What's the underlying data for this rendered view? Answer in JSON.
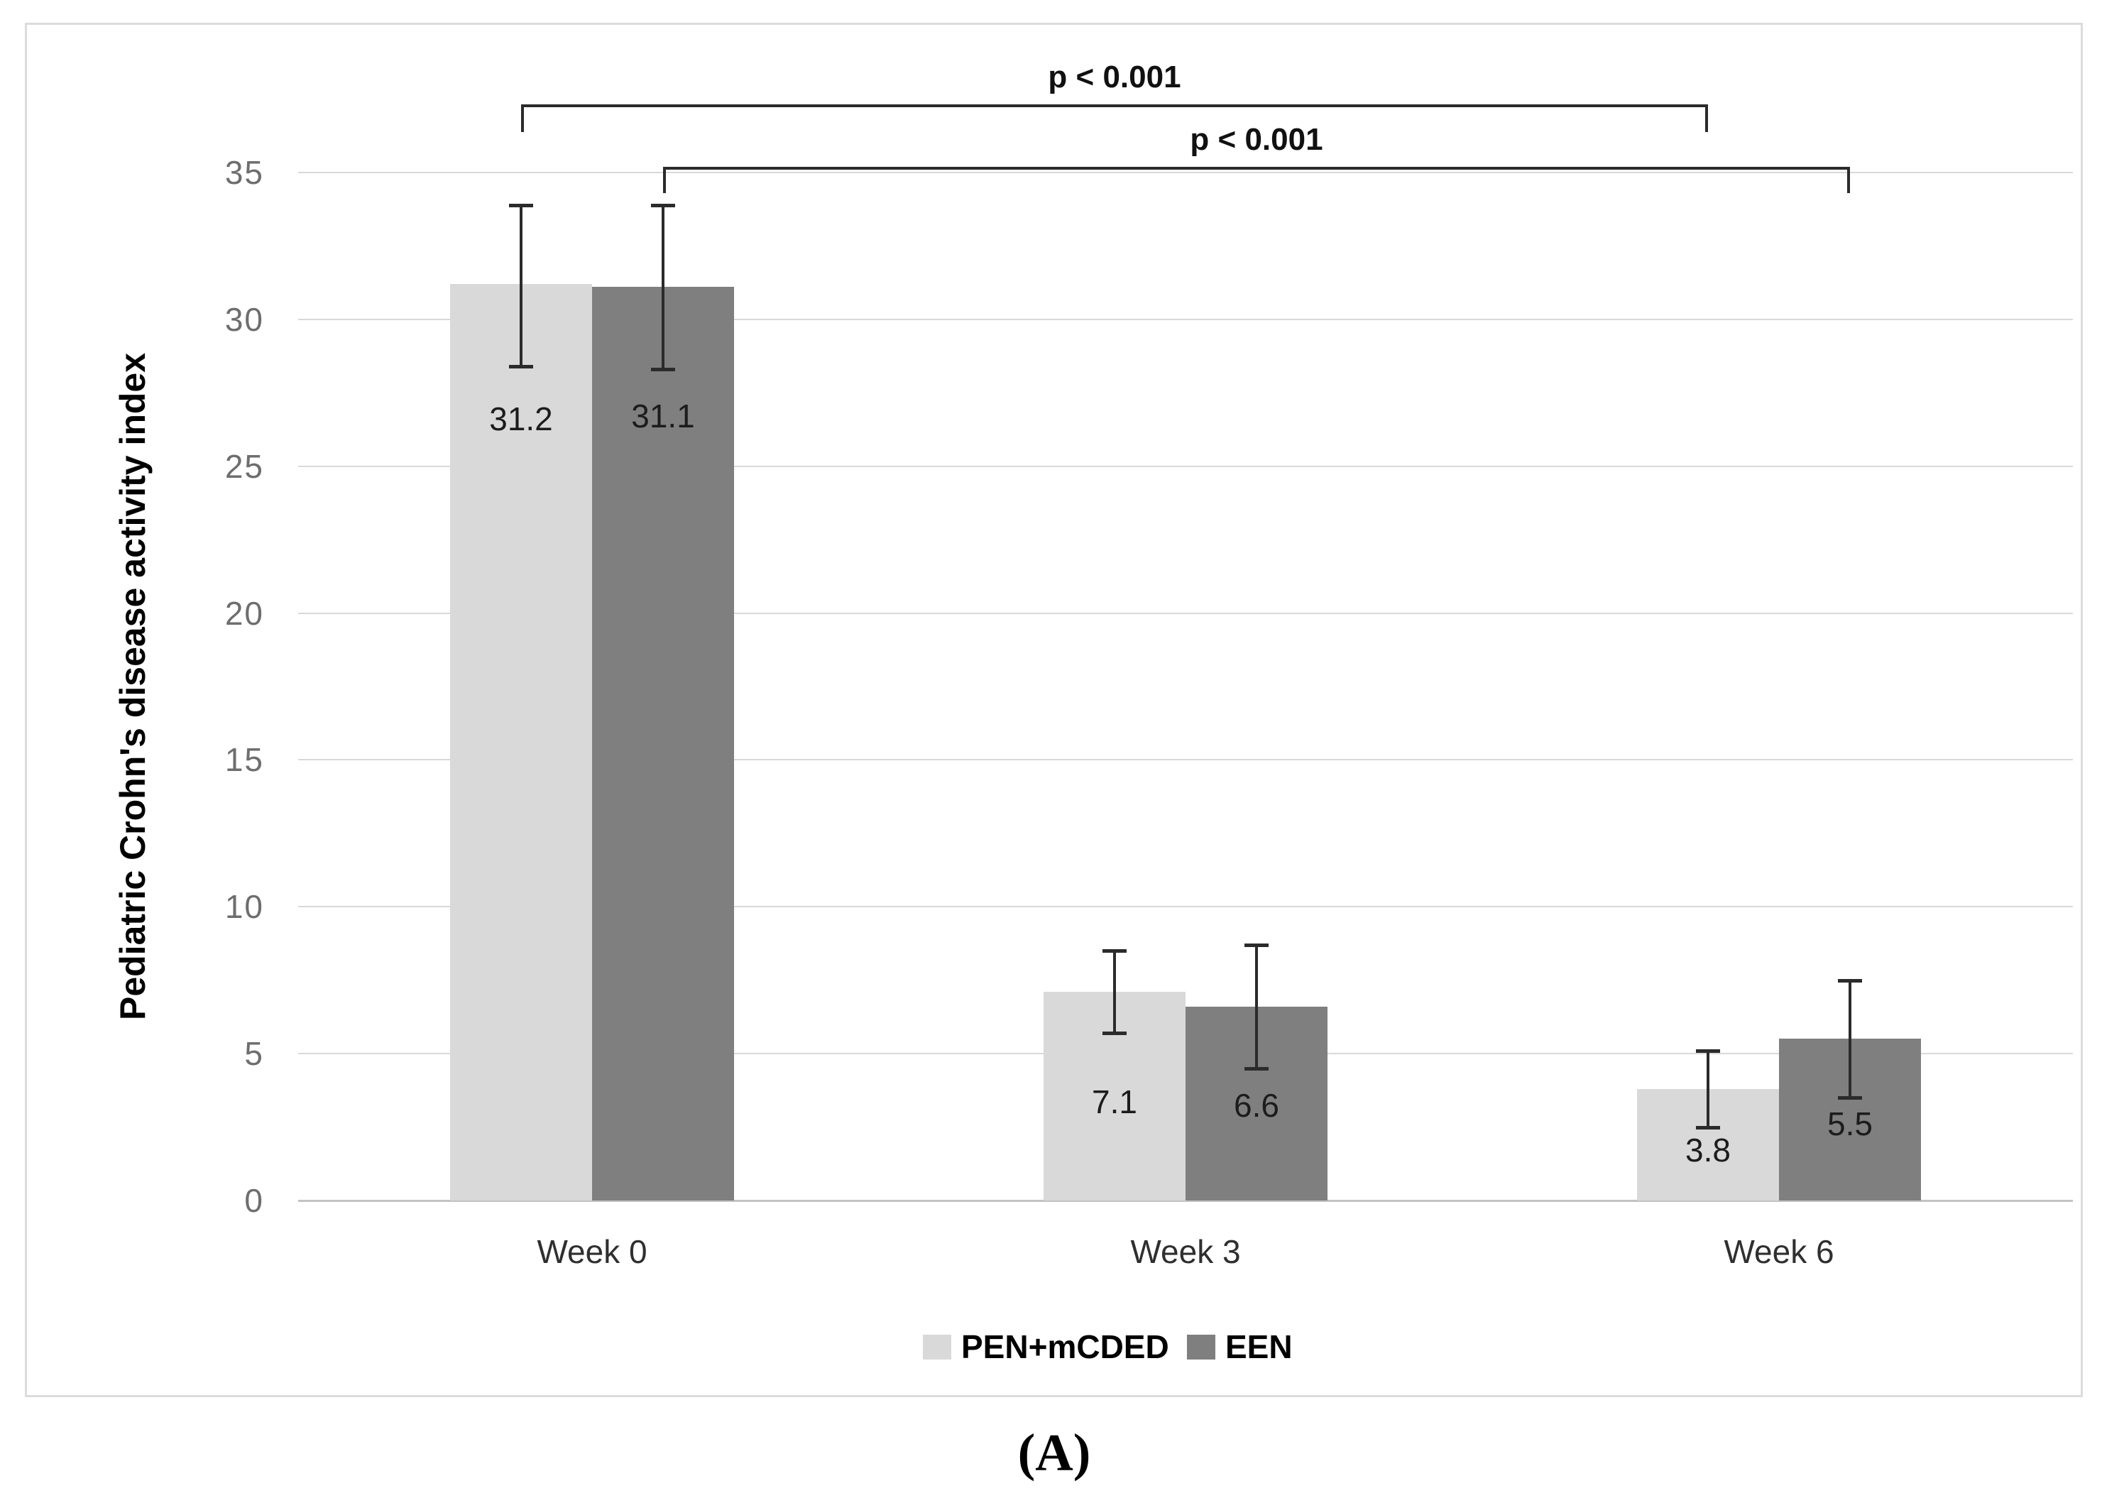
{
  "figure": {
    "caption": "(A)"
  },
  "chart_data": {
    "type": "bar",
    "title": "",
    "xlabel": "",
    "ylabel": "Pediatric Crohn's disease activity index",
    "categories": [
      "Week 0",
      "Week 3",
      "Week 6"
    ],
    "series": [
      {
        "name": "PEN+mCDED",
        "color": "#d9d9d9",
        "values": [
          31.2,
          7.1,
          3.8
        ],
        "labels": [
          "31.2",
          "7.1",
          "3.8"
        ],
        "error_low": [
          28.4,
          5.7,
          2.5
        ],
        "error_high": [
          33.9,
          8.5,
          5.1
        ]
      },
      {
        "name": "EEN",
        "color": "#7f7f7f",
        "values": [
          31.1,
          6.6,
          5.5
        ],
        "labels": [
          "31.1",
          "6.6",
          "5.5"
        ],
        "error_low": [
          28.3,
          4.5,
          3.5
        ],
        "error_high": [
          33.9,
          8.7,
          7.5
        ]
      }
    ],
    "ylim": [
      0,
      35
    ],
    "yticks": [
      0,
      5,
      10,
      15,
      20,
      25,
      30,
      35
    ],
    "grid": true,
    "legend_position": "bottom",
    "annotations": [
      {
        "label": "p < 0.001",
        "series": "PEN+mCDED",
        "from_category": "Week 0",
        "to_category": "Week 6"
      },
      {
        "label": "p < 0.001",
        "series": "EEN",
        "from_category": "Week 0",
        "to_category": "Week 6"
      }
    ],
    "colors": {
      "gridline": "#d9d9d9",
      "axis_line": "#c3c3c3",
      "error_bar": "#2b2b2b",
      "tick_text": "#6e6e6e"
    }
  }
}
